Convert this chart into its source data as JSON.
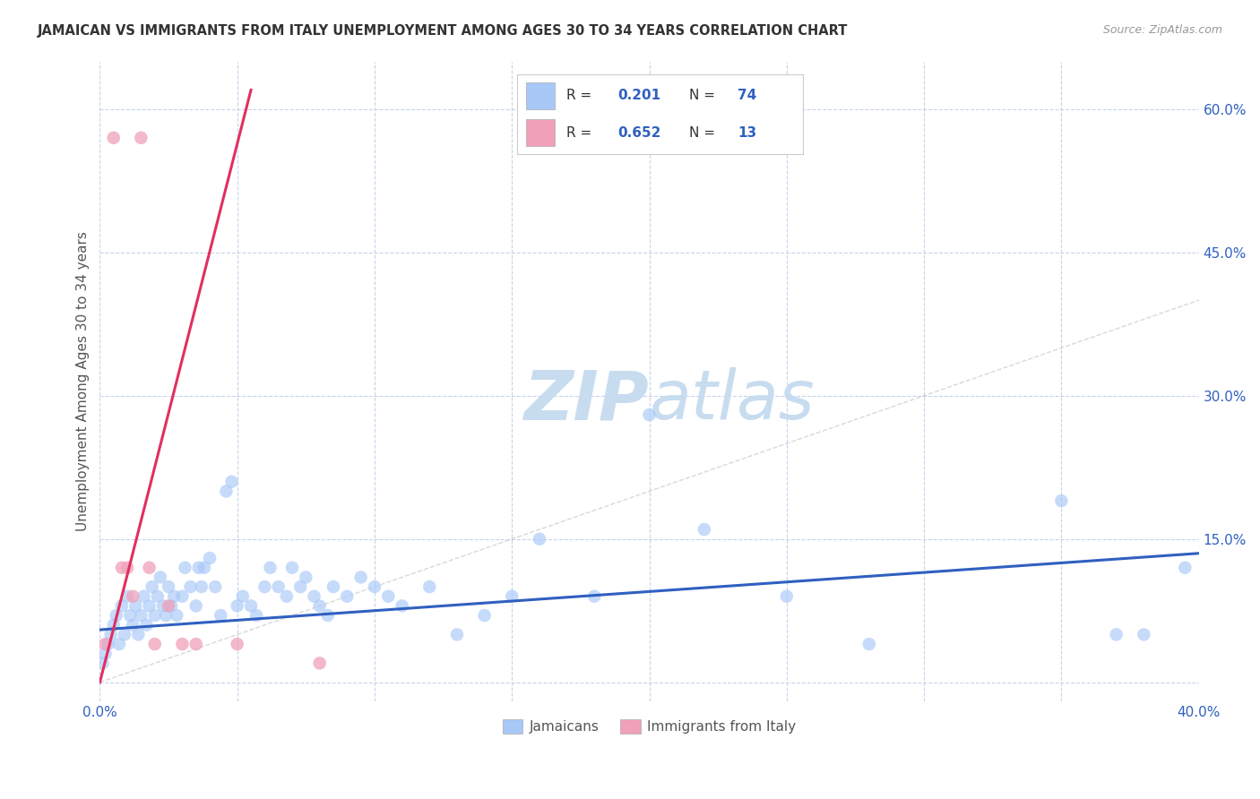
{
  "title": "JAMAICAN VS IMMIGRANTS FROM ITALY UNEMPLOYMENT AMONG AGES 30 TO 34 YEARS CORRELATION CHART",
  "source": "Source: ZipAtlas.com",
  "ylabel": "Unemployment Among Ages 30 to 34 years",
  "xlim": [
    0.0,
    0.4
  ],
  "ylim": [
    -0.02,
    0.65
  ],
  "yticks": [
    0.0,
    0.15,
    0.3,
    0.45,
    0.6
  ],
  "yticklabels": [
    "",
    "15.0%",
    "30.0%",
    "45.0%",
    "60.0%"
  ],
  "xticks": [
    0.0,
    0.05,
    0.1,
    0.15,
    0.2,
    0.25,
    0.3,
    0.35,
    0.4
  ],
  "xticklabels": [
    "0.0%",
    "",
    "",
    "",
    "",
    "",
    "",
    "",
    "40.0%"
  ],
  "jamaicans_color": "#A8C8F8",
  "italy_color": "#F0A0B8",
  "trend_blue_color": "#3060C0",
  "trend_pink_color": "#E03060",
  "diag_color": "#C8C8C8",
  "legend_R1": "0.201",
  "legend_N1": "74",
  "legend_R2": "0.652",
  "legend_N2": "13",
  "legend_text_color": "#3060C0",
  "legend_label_color": "#333333",
  "jamaicans_x": [
    0.001,
    0.002,
    0.003,
    0.004,
    0.005,
    0.006,
    0.007,
    0.008,
    0.009,
    0.01,
    0.011,
    0.012,
    0.013,
    0.014,
    0.015,
    0.016,
    0.017,
    0.018,
    0.019,
    0.02,
    0.021,
    0.022,
    0.023,
    0.024,
    0.025,
    0.026,
    0.027,
    0.028,
    0.03,
    0.031,
    0.033,
    0.035,
    0.036,
    0.037,
    0.038,
    0.04,
    0.042,
    0.044,
    0.046,
    0.048,
    0.05,
    0.052,
    0.055,
    0.057,
    0.06,
    0.062,
    0.065,
    0.068,
    0.07,
    0.073,
    0.075,
    0.078,
    0.08,
    0.083,
    0.085,
    0.09,
    0.095,
    0.1,
    0.105,
    0.11,
    0.12,
    0.13,
    0.14,
    0.15,
    0.16,
    0.18,
    0.2,
    0.22,
    0.25,
    0.28,
    0.35,
    0.37,
    0.38,
    0.395
  ],
  "jamaicans_y": [
    0.02,
    0.03,
    0.04,
    0.05,
    0.06,
    0.07,
    0.04,
    0.08,
    0.05,
    0.09,
    0.07,
    0.06,
    0.08,
    0.05,
    0.07,
    0.09,
    0.06,
    0.08,
    0.1,
    0.07,
    0.09,
    0.11,
    0.08,
    0.07,
    0.1,
    0.08,
    0.09,
    0.07,
    0.09,
    0.12,
    0.1,
    0.08,
    0.12,
    0.1,
    0.12,
    0.13,
    0.1,
    0.07,
    0.2,
    0.21,
    0.08,
    0.09,
    0.08,
    0.07,
    0.1,
    0.12,
    0.1,
    0.09,
    0.12,
    0.1,
    0.11,
    0.09,
    0.08,
    0.07,
    0.1,
    0.09,
    0.11,
    0.1,
    0.09,
    0.08,
    0.1,
    0.05,
    0.07,
    0.09,
    0.15,
    0.09,
    0.28,
    0.16,
    0.09,
    0.04,
    0.19,
    0.05,
    0.05,
    0.12
  ],
  "italy_x": [
    0.002,
    0.005,
    0.008,
    0.01,
    0.012,
    0.015,
    0.018,
    0.02,
    0.025,
    0.03,
    0.035,
    0.05,
    0.08
  ],
  "italy_y": [
    0.04,
    0.57,
    0.12,
    0.12,
    0.09,
    0.57,
    0.12,
    0.04,
    0.08,
    0.04,
    0.04,
    0.04,
    0.02
  ],
  "blue_trend_x": [
    0.0,
    0.4
  ],
  "blue_trend_y": [
    0.055,
    0.135
  ],
  "pink_trend_x": [
    0.0,
    0.055
  ],
  "pink_trend_y": [
    0.0,
    0.62
  ]
}
